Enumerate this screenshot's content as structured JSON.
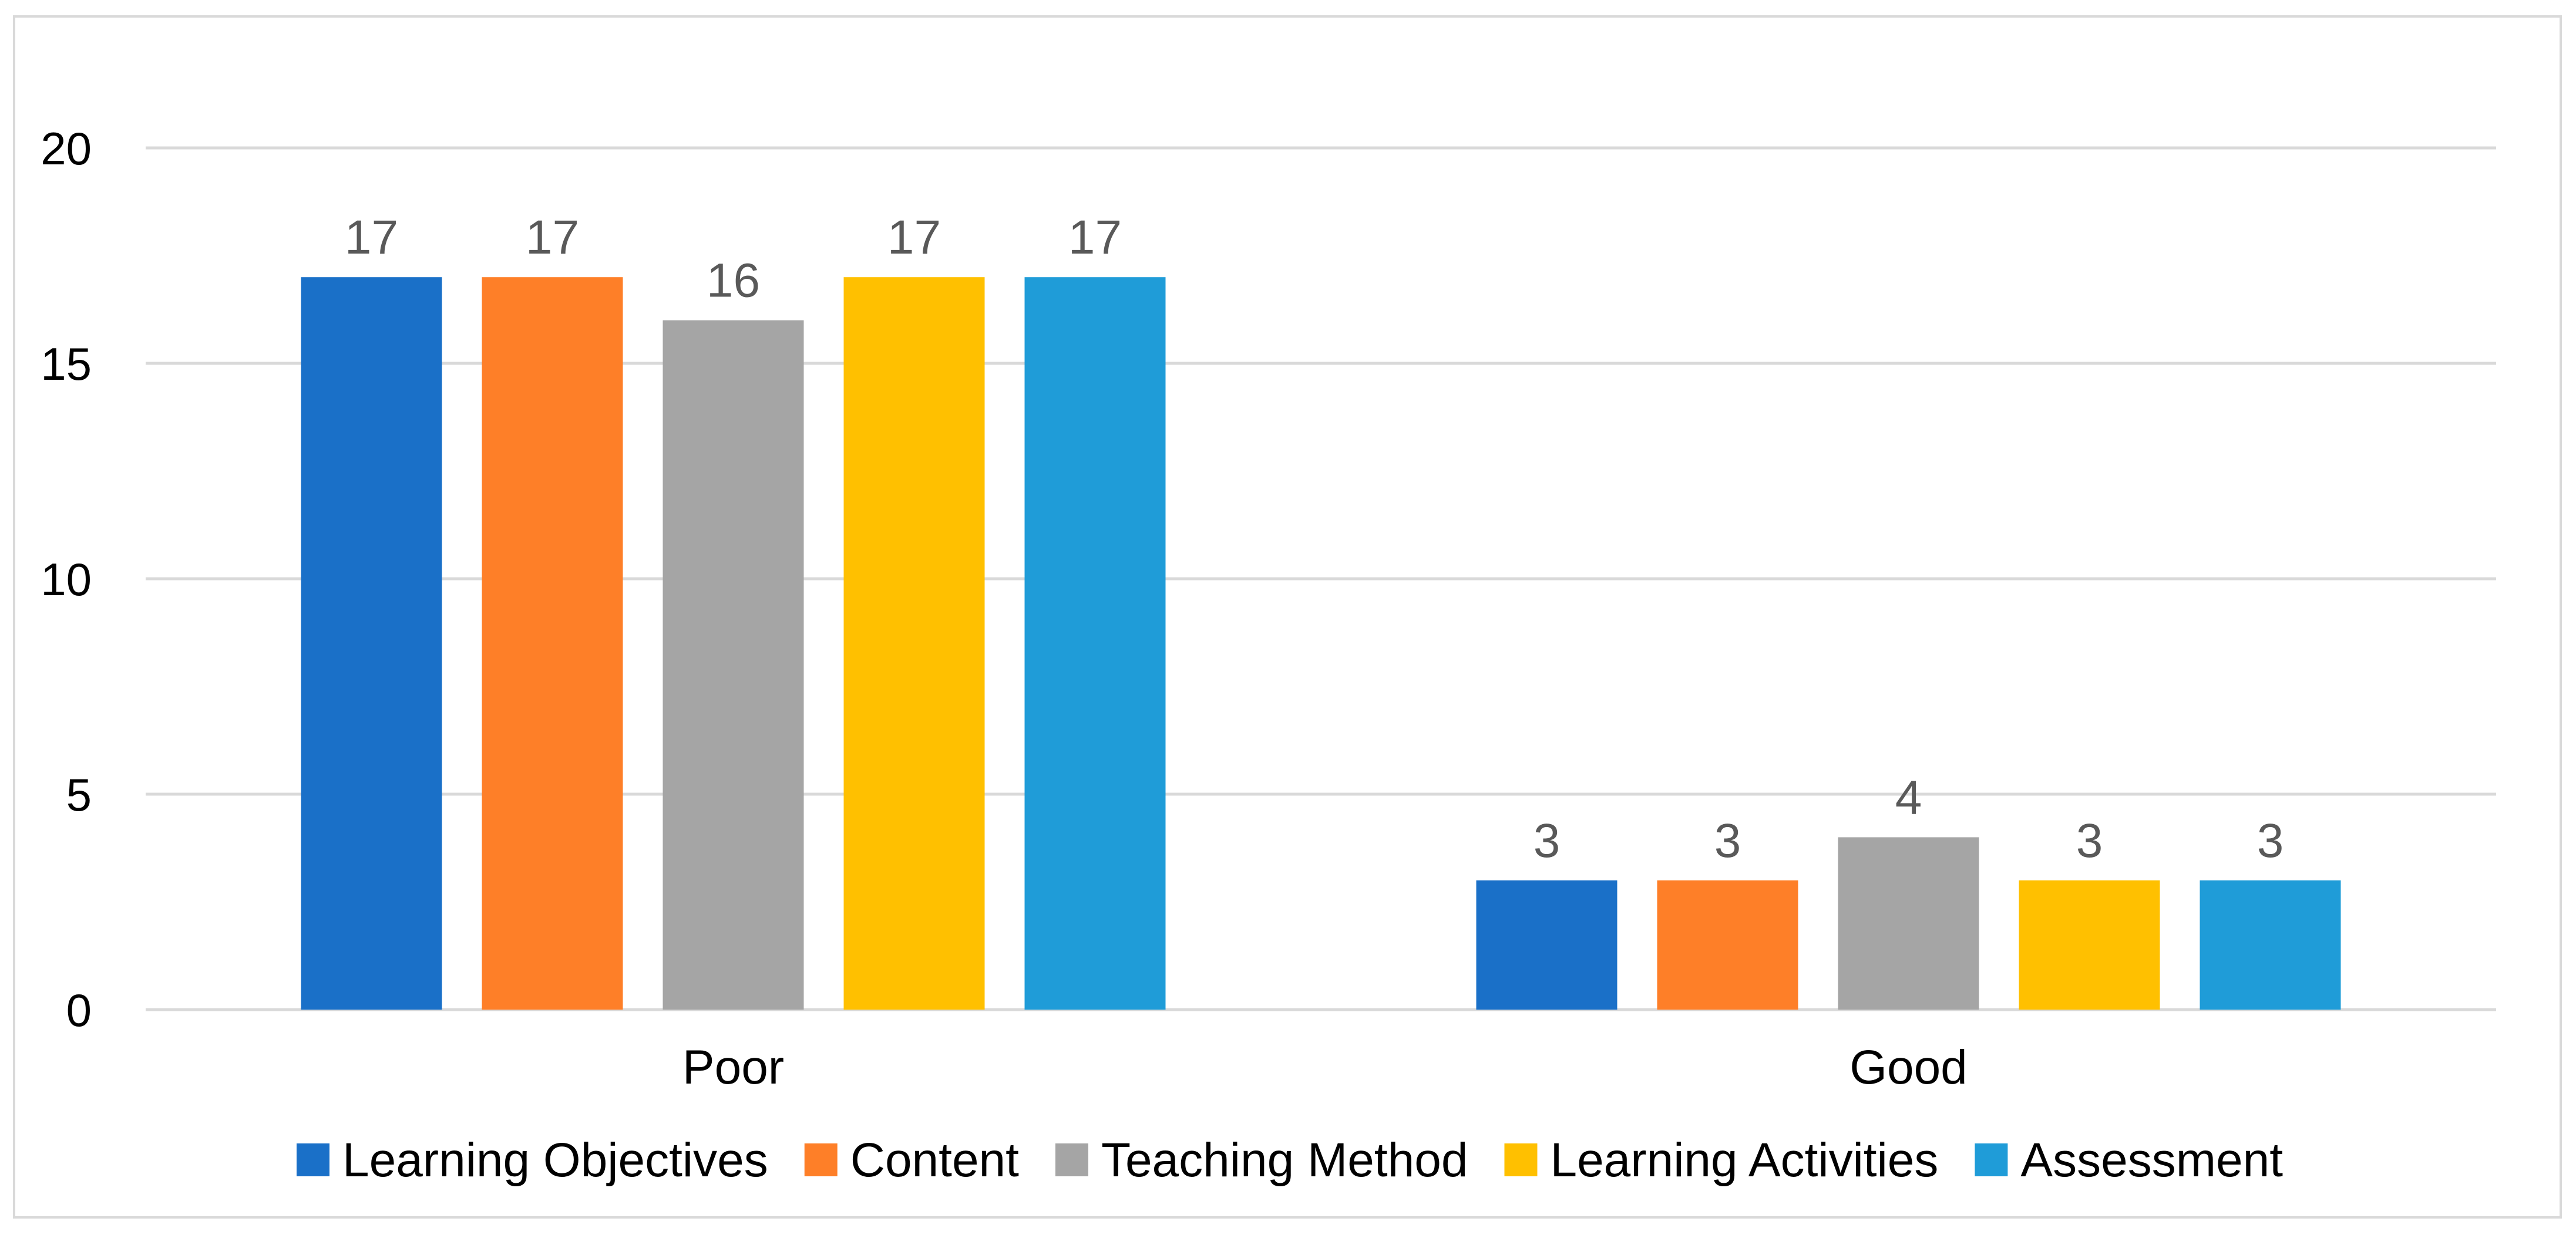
{
  "chart_data": {
    "type": "bar",
    "title": "",
    "xlabel": "",
    "ylabel": "",
    "categories": [
      "Poor",
      "Good"
    ],
    "series": [
      {
        "name": "Learning Objectives",
        "values": [
          17,
          3
        ],
        "color": "#1a70c8"
      },
      {
        "name": "Content",
        "values": [
          17,
          3
        ],
        "color": "#fe7f28"
      },
      {
        "name": "Teaching Method",
        "values": [
          16,
          4
        ],
        "color": "#a5a5a5"
      },
      {
        "name": "Learning Activities",
        "values": [
          17,
          3
        ],
        "color": "#ffc000"
      },
      {
        "name": "Assessment",
        "values": [
          17,
          3
        ],
        "color": "#1f9cd8"
      }
    ],
    "ylim": [
      0,
      20
    ],
    "yticks": [
      "0",
      "5",
      "10",
      "15",
      "20"
    ],
    "grid": true,
    "gridline_color": "#d9d9d9",
    "legend_position": "bottom",
    "data_labels": true
  }
}
